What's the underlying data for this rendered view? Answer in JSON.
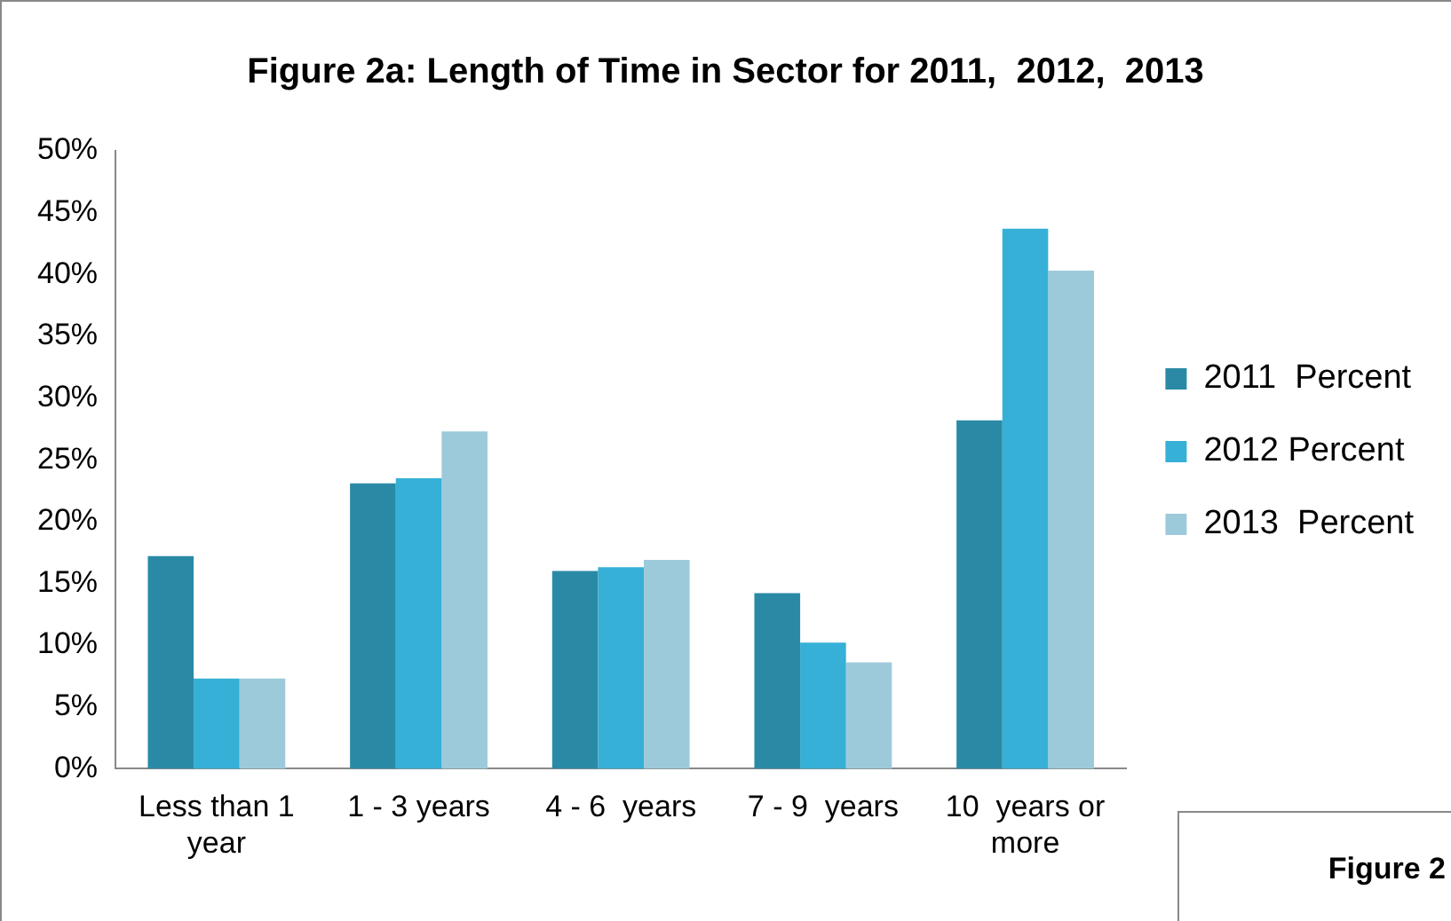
{
  "chart_data": {
    "type": "bar",
    "title": "Figure 2a: Length of Time in Sector for 2011,  2012,  2013",
    "categories": [
      "Less than 1 year",
      "1 - 3 years",
      "4 - 6  years",
      "7 - 9  years",
      "10  years or more"
    ],
    "series": [
      {
        "name": "2011  Percent",
        "color": "#2a8aa6",
        "values": [
          17.2,
          23.1,
          16.0,
          14.2,
          28.2
        ]
      },
      {
        "name": "2012 Percent",
        "color": "#36b0d6",
        "values": [
          7.3,
          23.5,
          16.3,
          10.2,
          43.7
        ]
      },
      {
        "name": "2013  Percent",
        "color": "#9dcadb",
        "values": [
          7.3,
          27.3,
          16.9,
          8.6,
          40.3
        ]
      }
    ],
    "ylim": [
      0,
      50
    ],
    "yticks": [
      {
        "value": 0,
        "label": "0%"
      },
      {
        "value": 5,
        "label": "5%"
      },
      {
        "value": 10,
        "label": "10%"
      },
      {
        "value": 15,
        "label": "15%"
      },
      {
        "value": 20,
        "label": "20%"
      },
      {
        "value": 25,
        "label": "25%"
      },
      {
        "value": 30,
        "label": "30%"
      },
      {
        "value": 35,
        "label": "35%"
      },
      {
        "value": 40,
        "label": "40%"
      },
      {
        "value": 45,
        "label": "45%"
      },
      {
        "value": 50,
        "label": "50%"
      }
    ],
    "grid": false,
    "legend": "right",
    "annotations": [
      "Figure 2"
    ]
  }
}
